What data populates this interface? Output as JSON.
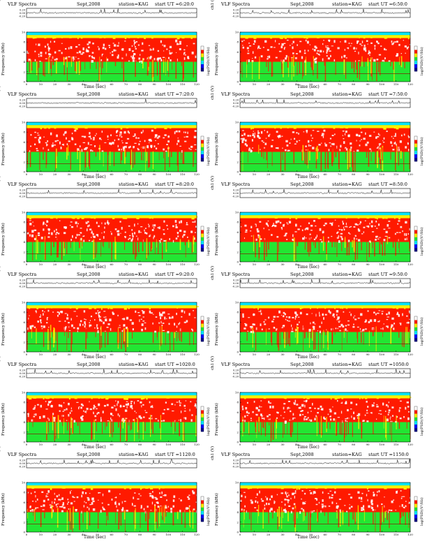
{
  "colors": {
    "dark_blue": "#00008b",
    "blue": "#0000ff",
    "cyan": "#00e5ff",
    "green": "#22e633",
    "yellow": "#ffee00",
    "red": "#ff1a00",
    "white": "#ffffff"
  },
  "panels": [
    {
      "title": "VLF Spectra",
      "date": "Sept,2008",
      "station": "station=KAG",
      "start": "start UT =6:20:0",
      "channel_label": "ch1 (V)",
      "freq_label": "Frequency (kHz)",
      "time_label": "Time (sec)",
      "colorbar_label": "log(PSD)(V²/Hz)"
    },
    {
      "title": "VLF Spectra",
      "date": "Sept,2008",
      "station": "station=KAG",
      "start": "start UT =6:50:0",
      "channel_label": "ch1 (V)",
      "freq_label": "Frequency (kHz)",
      "time_label": "Time (sec)",
      "colorbar_label": "log(PSD)(V²/Hz)"
    },
    {
      "title": "VLF Spectra",
      "date": "Sept,2008",
      "station": "station=KAG",
      "start": "start UT =7:20:0",
      "channel_label": "ch1 (V)",
      "freq_label": "Frequency (kHz)",
      "time_label": "Time (sec)",
      "colorbar_label": "log(PSD)(V²/Hz)"
    },
    {
      "title": "VLF Spectra",
      "date": "Sept,2008",
      "station": "station=KAG",
      "start": "start UT =7:50:0",
      "channel_label": "ch1 (V)",
      "freq_label": "Frequency (kHz)",
      "time_label": "Time (sec)",
      "colorbar_label": "log(PSD)(V²/Hz)"
    },
    {
      "title": "VLF Spectra",
      "date": "Sept,2008",
      "station": "station=KAG",
      "start": "start UT =8:20:0",
      "channel_label": "ch1 (V)",
      "freq_label": "Frequency (kHz)",
      "time_label": "Time (sec)",
      "colorbar_label": "log(PSD)(V²/Hz)"
    },
    {
      "title": "VLF Spectra",
      "date": "Sept,2008",
      "station": "station=KAG",
      "start": "start UT =8:50:0",
      "channel_label": "ch1 (V)",
      "freq_label": "Frequency (kHz)",
      "time_label": "Time (sec)",
      "colorbar_label": "log(PSD)(V²/Hz)"
    },
    {
      "title": "VLF Spectra",
      "date": "Sept,2008",
      "station": "station=KAG",
      "start": "start UT =9:20:0",
      "channel_label": "ch1 (V)",
      "freq_label": "Frequency (kHz)",
      "time_label": "Time (sec)",
      "colorbar_label": "log(PSD)(V²/Hz)"
    },
    {
      "title": "VLF Spectra",
      "date": "Sept,2008",
      "station": "station=KAG",
      "start": "start UT =9:50:0",
      "channel_label": "ch1 (V)",
      "freq_label": "Frequency (kHz)",
      "time_label": "Time (sec)",
      "colorbar_label": "log(PSD)(V²/Hz)"
    },
    {
      "title": "VLF Spectra",
      "date": "Sept,2008",
      "station": "station=KAG",
      "start": "start UT =1020:0",
      "channel_label": "ch1 (V)",
      "freq_label": "Frequency (kHz)",
      "time_label": "Time (sec)",
      "colorbar_label": "log(PSD)(V²/Hz)"
    },
    {
      "title": "VLF Spectra",
      "date": "Sept,2008",
      "station": "station=KAG",
      "start": "start UT =1050:0",
      "channel_label": "ch1 (V)",
      "freq_label": "Frequency (kHz)",
      "time_label": "Time (sec)",
      "colorbar_label": "log(PSD)(V²/Hz)"
    },
    {
      "title": "VLF Spectra",
      "date": "Sept,2008",
      "station": "station=KAG",
      "start": "start UT =1120:0",
      "channel_label": "ch1 (V)",
      "freq_label": "Frequency (kHz)",
      "time_label": "Time (sec)",
      "colorbar_label": "log(PSD)(V²/Hz)"
    },
    {
      "title": "VLF Spectra",
      "date": "Sept,2008",
      "station": "station=KAG",
      "start": "start UT =1150:0",
      "channel_label": "ch1 (V)",
      "freq_label": "Frequency (kHz)",
      "time_label": "Time (sec)",
      "colorbar_label": "log(PSD)(V²/Hz)"
    }
  ],
  "chart_data": {
    "type": "heatmap",
    "layout": "6 rows x 2 columns of spectrogram panels",
    "x_axis": {
      "label": "Time (sec)",
      "range": [
        0,
        120
      ],
      "ticks": [
        "0",
        "10",
        "20",
        "30",
        "40",
        "50",
        "60",
        "70",
        "80",
        "90",
        "100",
        "110",
        "120"
      ]
    },
    "y_axis": {
      "label": "Frequency (kHz)",
      "range": [
        0,
        10
      ],
      "ticks": [
        "0",
        "2",
        "4",
        "6",
        "8",
        "10"
      ]
    },
    "waveform_axis": {
      "label": "ch1 (V)",
      "ticks": [
        "0.20",
        "0.00",
        "-0.20"
      ]
    },
    "colorbar": {
      "label": "log(PSD)(V²/Hz)",
      "scale": [
        "dark_blue",
        "blue",
        "cyan",
        "green",
        "yellow",
        "red",
        "white"
      ]
    },
    "bands": [
      {
        "freq_range_khz": [
          9.4,
          10
        ],
        "dominant": "green/cyan"
      },
      {
        "freq_range_khz": [
          8.8,
          9.4
        ],
        "dominant": "yellow"
      },
      {
        "freq_range_khz": [
          4,
          8.8
        ],
        "dominant": "red with white patches"
      },
      {
        "freq_range_khz": [
          0,
          4
        ],
        "dominant": "green with red vertical streaks"
      }
    ],
    "reference_line_khz": 1.6
  }
}
